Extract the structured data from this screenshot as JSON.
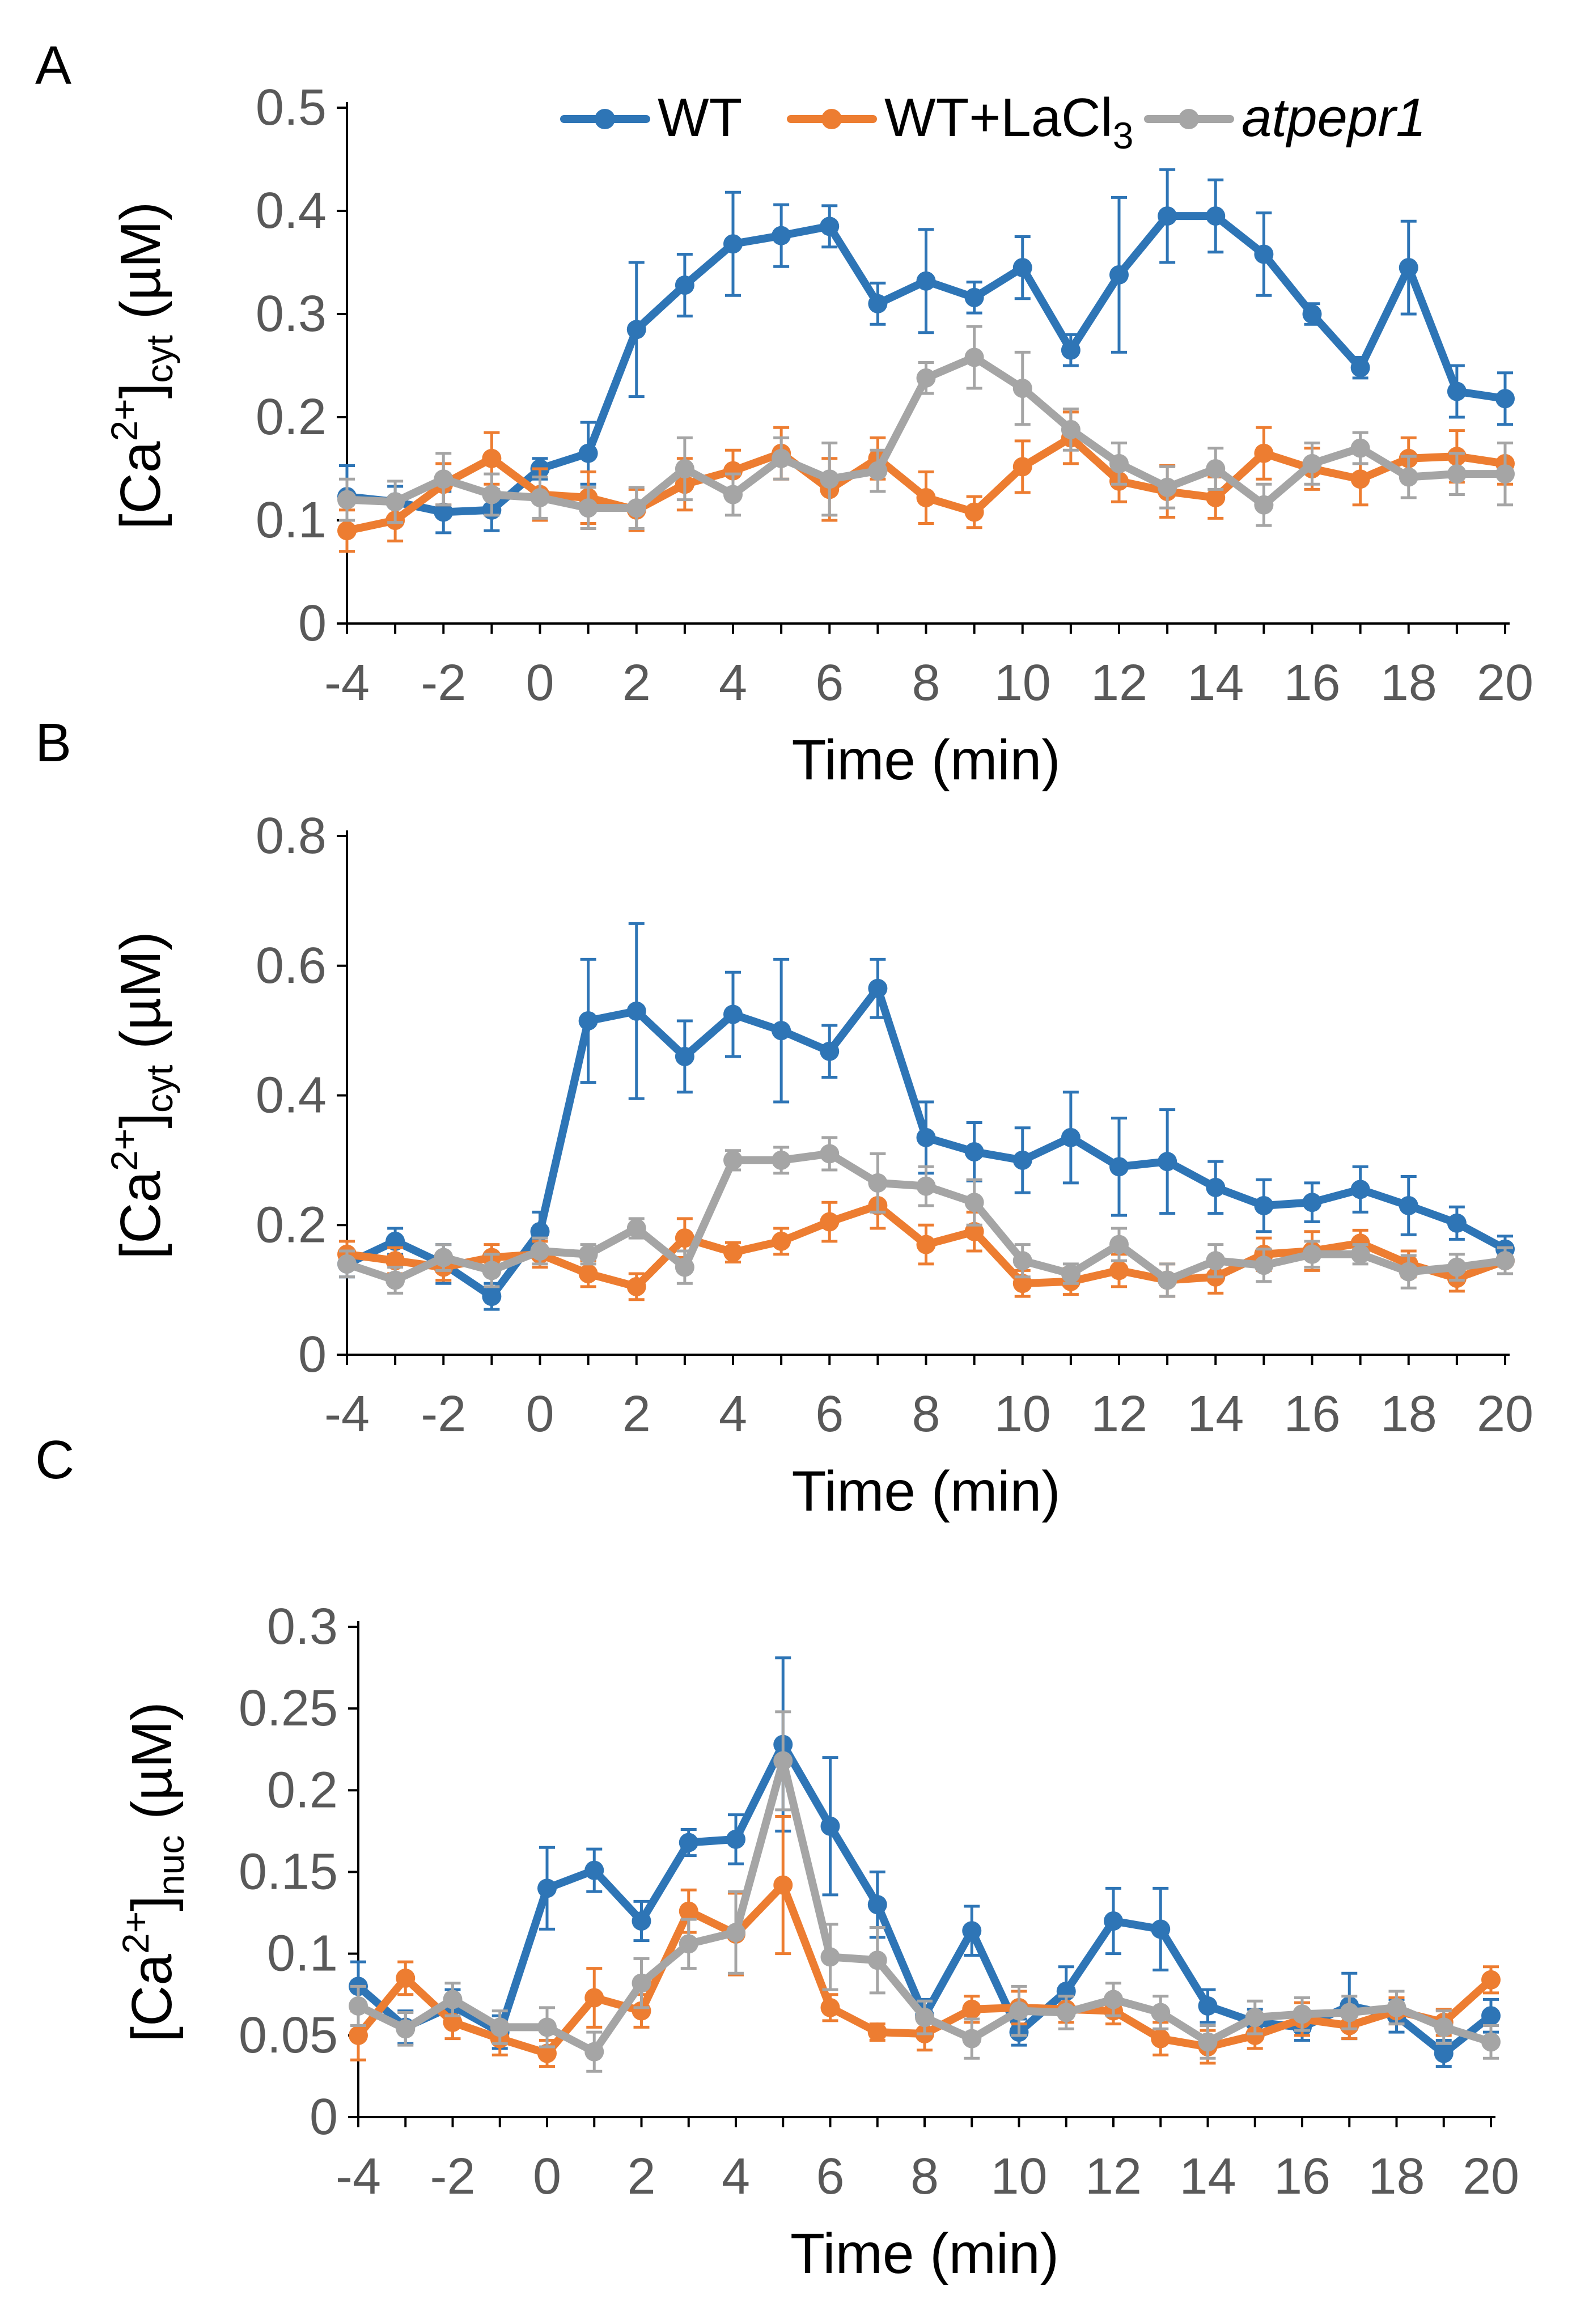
{
  "figure": {
    "x_ticks": [
      "-4",
      "-2",
      "0",
      "2",
      "4",
      "6",
      "8",
      "10",
      "12",
      "14",
      "16",
      "18",
      "20"
    ],
    "legend": [
      {
        "name": "WT",
        "color": "#2E75B6"
      },
      {
        "name": "WT+LaCl",
        "subscript": "3",
        "color": "#ED7D31"
      },
      {
        "name": "atpepr1",
        "color": "#A5A5A5",
        "italic": true
      }
    ]
  },
  "chart_data": [
    {
      "type": "line",
      "panel": "A",
      "xlabel": "Time (min)",
      "ylabel": {
        "prefix": "[Ca",
        "sup": "2+",
        "mid": "]",
        "sub": "cyt",
        "suffix": " (µM)"
      },
      "ylim": [
        0,
        0.5
      ],
      "yticks": [
        "0",
        "0.1",
        "0.2",
        "0.3",
        "0.4",
        "0.5"
      ],
      "x": [
        -4,
        -3,
        -2,
        -1,
        0,
        1,
        2,
        3,
        4,
        5,
        6,
        7,
        8,
        9,
        10,
        11,
        12,
        13,
        14,
        15,
        16,
        17,
        18,
        19,
        20
      ],
      "series": [
        {
          "name": "WT",
          "color": "#2E75B6",
          "values": [
            0.123,
            0.118,
            0.108,
            0.11,
            0.15,
            0.165,
            0.285,
            0.328,
            0.368,
            0.376,
            0.385,
            0.31,
            0.332,
            0.316,
            0.345,
            0.265,
            0.338,
            0.395,
            0.395,
            0.358,
            0.3,
            0.248,
            0.345,
            0.225,
            0.218
          ],
          "errors": [
            0.03,
            0.015,
            0.02,
            0.02,
            0.01,
            0.03,
            0.065,
            0.03,
            0.05,
            0.03,
            0.02,
            0.02,
            0.05,
            0.015,
            0.03,
            0.015,
            0.075,
            0.045,
            0.035,
            0.04,
            0.01,
            0.01,
            0.045,
            0.025,
            0.025
          ]
        },
        {
          "name": "WT+LaCl3",
          "color": "#ED7D31",
          "values": [
            0.09,
            0.1,
            0.135,
            0.16,
            0.125,
            0.122,
            0.11,
            0.135,
            0.148,
            0.165,
            0.13,
            0.16,
            0.122,
            0.108,
            0.152,
            0.18,
            0.138,
            0.128,
            0.122,
            0.165,
            0.15,
            0.14,
            0.16,
            0.162,
            0.155
          ],
          "errors": [
            0.02,
            0.02,
            0.02,
            0.025,
            0.025,
            0.025,
            0.02,
            0.025,
            0.02,
            0.025,
            0.03,
            0.02,
            0.025,
            0.015,
            0.025,
            0.025,
            0.02,
            0.025,
            0.02,
            0.025,
            0.02,
            0.025,
            0.02,
            0.025,
            0.02
          ]
        },
        {
          "name": "atpepr1",
          "color": "#A5A5A5",
          "values": [
            0.12,
            0.118,
            0.14,
            0.125,
            0.122,
            0.112,
            0.112,
            0.15,
            0.125,
            0.16,
            0.14,
            0.148,
            0.238,
            0.258,
            0.228,
            0.188,
            0.155,
            0.132,
            0.15,
            0.115,
            0.155,
            0.17,
            0.142,
            0.145,
            0.145
          ],
          "errors": [
            0.02,
            0.02,
            0.025,
            0.02,
            0.02,
            0.02,
            0.02,
            0.03,
            0.02,
            0.02,
            0.035,
            0.02,
            0.015,
            0.03,
            0.035,
            0.02,
            0.02,
            0.02,
            0.02,
            0.02,
            0.02,
            0.015,
            0.02,
            0.02,
            0.03
          ]
        }
      ]
    },
    {
      "type": "line",
      "panel": "B",
      "xlabel": "Time (min)",
      "ylabel": {
        "prefix": "[Ca",
        "sup": "2+",
        "mid": "]",
        "sub": "cyt",
        "suffix": " (µM)"
      },
      "ylim": [
        0,
        0.8
      ],
      "yticks": [
        "0",
        "0.2",
        "0.4",
        "0.6",
        "0.8"
      ],
      "x": [
        -4,
        -3,
        -2,
        -1,
        0,
        1,
        2,
        3,
        4,
        5,
        6,
        7,
        8,
        9,
        10,
        11,
        12,
        13,
        14,
        15,
        16,
        17,
        18,
        19,
        20
      ],
      "series": [
        {
          "name": "WT",
          "color": "#2E75B6",
          "values": [
            0.14,
            0.175,
            0.14,
            0.09,
            0.19,
            0.515,
            0.53,
            0.46,
            0.525,
            0.5,
            0.468,
            0.565,
            0.335,
            0.313,
            0.3,
            0.335,
            0.29,
            0.298,
            0.258,
            0.23,
            0.235,
            0.255,
            0.23,
            0.203,
            0.163
          ],
          "errors": [
            0.02,
            0.02,
            0.03,
            0.02,
            0.03,
            0.095,
            0.135,
            0.055,
            0.065,
            0.11,
            0.04,
            0.045,
            0.055,
            0.045,
            0.05,
            0.07,
            0.075,
            0.08,
            0.04,
            0.04,
            0.03,
            0.035,
            0.045,
            0.025,
            0.02
          ]
        },
        {
          "name": "WT+LaCl3",
          "color": "#ED7D31",
          "values": [
            0.155,
            0.145,
            0.135,
            0.15,
            0.155,
            0.125,
            0.105,
            0.18,
            0.158,
            0.175,
            0.205,
            0.23,
            0.17,
            0.19,
            0.11,
            0.113,
            0.13,
            0.115,
            0.12,
            0.155,
            0.16,
            0.172,
            0.14,
            0.118,
            0.145
          ],
          "errors": [
            0.02,
            0.02,
            0.02,
            0.02,
            0.02,
            0.02,
            0.02,
            0.03,
            0.015,
            0.02,
            0.03,
            0.035,
            0.03,
            0.03,
            0.02,
            0.02,
            0.025,
            0.025,
            0.025,
            0.025,
            0.03,
            0.02,
            0.02,
            0.02,
            0.02
          ]
        },
        {
          "name": "atpepr1",
          "color": "#A5A5A5",
          "values": [
            0.14,
            0.115,
            0.15,
            0.13,
            0.16,
            0.155,
            0.195,
            0.135,
            0.3,
            0.3,
            0.31,
            0.265,
            0.26,
            0.235,
            0.145,
            0.125,
            0.17,
            0.115,
            0.145,
            0.138,
            0.155,
            0.155,
            0.128,
            0.135,
            0.145
          ],
          "errors": [
            0.02,
            0.02,
            0.02,
            0.025,
            0.02,
            0.015,
            0.015,
            0.025,
            0.015,
            0.02,
            0.025,
            0.045,
            0.03,
            0.035,
            0.025,
            0.015,
            0.025,
            0.025,
            0.025,
            0.025,
            0.02,
            0.015,
            0.025,
            0.02,
            0.02
          ]
        }
      ]
    },
    {
      "type": "line",
      "panel": "C",
      "xlabel": "Time (min)",
      "ylabel": {
        "prefix": "[Ca",
        "sup": "2+",
        "mid": "]",
        "sub": "nuc",
        "suffix": " (µM)"
      },
      "ylim": [
        0,
        0.3
      ],
      "yticks": [
        "0",
        "0.05",
        "0.1",
        "0.15",
        "0.2",
        "0.25",
        "0.3"
      ],
      "x": [
        -4,
        -3,
        -2,
        -1,
        0,
        1,
        2,
        3,
        4,
        5,
        6,
        7,
        8,
        9,
        10,
        11,
        12,
        13,
        14,
        15,
        16,
        17,
        18,
        19,
        20
      ],
      "series": [
        {
          "name": "WT",
          "color": "#2E75B6",
          "values": [
            0.08,
            0.055,
            0.068,
            0.052,
            0.14,
            0.151,
            0.12,
            0.168,
            0.17,
            0.228,
            0.178,
            0.13,
            0.062,
            0.114,
            0.052,
            0.077,
            0.12,
            0.115,
            0.068,
            0.058,
            0.055,
            0.068,
            0.062,
            0.039,
            0.062
          ],
          "errors": [
            0.015,
            0.01,
            0.01,
            0.01,
            0.025,
            0.013,
            0.012,
            0.008,
            0.015,
            0.053,
            0.042,
            0.02,
            0.01,
            0.015,
            0.008,
            0.015,
            0.02,
            0.025,
            0.01,
            0.008,
            0.008,
            0.02,
            0.01,
            0.008,
            0.01
          ]
        },
        {
          "name": "WT+LaCl3",
          "color": "#ED7D31",
          "values": [
            0.05,
            0.085,
            0.058,
            0.048,
            0.039,
            0.073,
            0.065,
            0.126,
            0.112,
            0.142,
            0.067,
            0.052,
            0.051,
            0.066,
            0.067,
            0.066,
            0.065,
            0.048,
            0.043,
            0.05,
            0.06,
            0.056,
            0.065,
            0.058,
            0.084
          ],
          "errors": [
            0.015,
            0.01,
            0.01,
            0.01,
            0.008,
            0.018,
            0.01,
            0.013,
            0.025,
            0.042,
            0.008,
            0.005,
            0.01,
            0.008,
            0.01,
            0.008,
            0.008,
            0.01,
            0.01,
            0.008,
            0.01,
            0.008,
            0.008,
            0.008,
            0.008
          ]
        },
        {
          "name": "atpepr1",
          "color": "#A5A5A5",
          "values": [
            0.068,
            0.054,
            0.072,
            0.055,
            0.055,
            0.04,
            0.082,
            0.106,
            0.113,
            0.218,
            0.098,
            0.096,
            0.061,
            0.048,
            0.065,
            0.064,
            0.072,
            0.064,
            0.046,
            0.061,
            0.063,
            0.064,
            0.067,
            0.055,
            0.046
          ],
          "errors": [
            0.012,
            0.01,
            0.01,
            0.01,
            0.012,
            0.012,
            0.015,
            0.015,
            0.025,
            0.03,
            0.02,
            0.02,
            0.01,
            0.012,
            0.015,
            0.01,
            0.01,
            0.01,
            0.01,
            0.01,
            0.01,
            0.01,
            0.01,
            0.01,
            0.01
          ]
        }
      ]
    }
  ]
}
